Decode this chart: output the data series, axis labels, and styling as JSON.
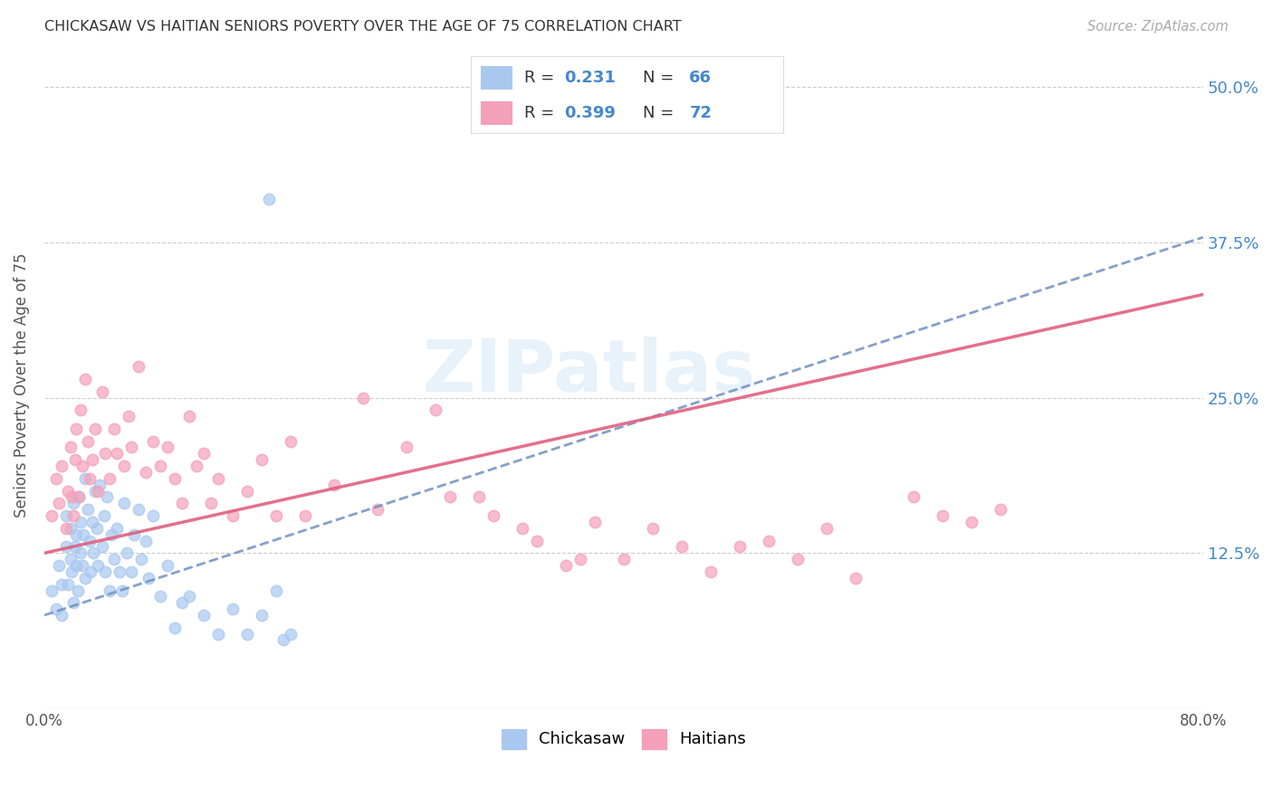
{
  "title": "CHICKASAW VS HAITIAN SENIORS POVERTY OVER THE AGE OF 75 CORRELATION CHART",
  "source": "Source: ZipAtlas.com",
  "ylabel": "Seniors Poverty Over the Age of 75",
  "chickasaw_R": 0.231,
  "chickasaw_N": 66,
  "haitian_R": 0.399,
  "haitian_N": 72,
  "chickasaw_dot_color": "#a8c8f0",
  "haitian_dot_color": "#f4a0b8",
  "chickasaw_line_color": "#7090c0",
  "haitian_line_color": "#e06080",
  "xlim": [
    0.0,
    0.8
  ],
  "ylim": [
    0.0,
    0.52
  ],
  "yticks": [
    0.0,
    0.125,
    0.25,
    0.375,
    0.5
  ],
  "ytick_labels": [
    "",
    "12.5%",
    "25.0%",
    "37.5%",
    "50.0%"
  ],
  "xticks": [
    0.0,
    0.1,
    0.2,
    0.3,
    0.4,
    0.5,
    0.6,
    0.7,
    0.8
  ],
  "xtick_labels_show": [
    "0.0%",
    "80.0%"
  ],
  "watermark_text": "ZIPatlas",
  "background_color": "#ffffff",
  "legend_label_1": "R =  0.231   N = 66",
  "legend_label_2": "R =  0.399   N = 72",
  "legend_label_chickasaw": "Chickasaw",
  "legend_label_haitian": "Haitians",
  "chickasaw_x": [
    0.005,
    0.008,
    0.01,
    0.012,
    0.012,
    0.015,
    0.015,
    0.016,
    0.018,
    0.018,
    0.019,
    0.02,
    0.02,
    0.021,
    0.022,
    0.022,
    0.023,
    0.024,
    0.025,
    0.025,
    0.026,
    0.027,
    0.028,
    0.028,
    0.03,
    0.031,
    0.032,
    0.033,
    0.034,
    0.035,
    0.036,
    0.037,
    0.038,
    0.04,
    0.041,
    0.042,
    0.043,
    0.045,
    0.046,
    0.048,
    0.05,
    0.052,
    0.054,
    0.055,
    0.057,
    0.06,
    0.062,
    0.065,
    0.067,
    0.07,
    0.072,
    0.075,
    0.08,
    0.085,
    0.09,
    0.095,
    0.1,
    0.11,
    0.12,
    0.13,
    0.14,
    0.15,
    0.155,
    0.16,
    0.165,
    0.17
  ],
  "chickasaw_y": [
    0.095,
    0.08,
    0.115,
    0.075,
    0.1,
    0.13,
    0.155,
    0.1,
    0.12,
    0.145,
    0.11,
    0.165,
    0.085,
    0.13,
    0.115,
    0.14,
    0.095,
    0.17,
    0.125,
    0.15,
    0.115,
    0.14,
    0.185,
    0.105,
    0.16,
    0.135,
    0.11,
    0.15,
    0.125,
    0.175,
    0.145,
    0.115,
    0.18,
    0.13,
    0.155,
    0.11,
    0.17,
    0.095,
    0.14,
    0.12,
    0.145,
    0.11,
    0.095,
    0.165,
    0.125,
    0.11,
    0.14,
    0.16,
    0.12,
    0.135,
    0.105,
    0.155,
    0.09,
    0.115,
    0.065,
    0.085,
    0.09,
    0.075,
    0.06,
    0.08,
    0.06,
    0.075,
    0.41,
    0.095,
    0.055,
    0.06
  ],
  "haitian_x": [
    0.005,
    0.008,
    0.01,
    0.012,
    0.015,
    0.016,
    0.018,
    0.019,
    0.02,
    0.021,
    0.022,
    0.024,
    0.025,
    0.026,
    0.028,
    0.03,
    0.031,
    0.033,
    0.035,
    0.037,
    0.04,
    0.042,
    0.045,
    0.048,
    0.05,
    0.055,
    0.058,
    0.06,
    0.065,
    0.07,
    0.075,
    0.08,
    0.085,
    0.09,
    0.095,
    0.1,
    0.105,
    0.11,
    0.115,
    0.12,
    0.13,
    0.14,
    0.15,
    0.16,
    0.17,
    0.18,
    0.2,
    0.22,
    0.23,
    0.25,
    0.27,
    0.28,
    0.3,
    0.31,
    0.33,
    0.34,
    0.36,
    0.37,
    0.38,
    0.4,
    0.42,
    0.44,
    0.46,
    0.48,
    0.5,
    0.52,
    0.54,
    0.56,
    0.6,
    0.62,
    0.64,
    0.66
  ],
  "haitian_y": [
    0.155,
    0.185,
    0.165,
    0.195,
    0.145,
    0.175,
    0.21,
    0.17,
    0.155,
    0.2,
    0.225,
    0.17,
    0.24,
    0.195,
    0.265,
    0.215,
    0.185,
    0.2,
    0.225,
    0.175,
    0.255,
    0.205,
    0.185,
    0.225,
    0.205,
    0.195,
    0.235,
    0.21,
    0.275,
    0.19,
    0.215,
    0.195,
    0.21,
    0.185,
    0.165,
    0.235,
    0.195,
    0.205,
    0.165,
    0.185,
    0.155,
    0.175,
    0.2,
    0.155,
    0.215,
    0.155,
    0.18,
    0.25,
    0.16,
    0.21,
    0.24,
    0.17,
    0.17,
    0.155,
    0.145,
    0.135,
    0.115,
    0.12,
    0.15,
    0.12,
    0.145,
    0.13,
    0.11,
    0.13,
    0.135,
    0.12,
    0.145,
    0.105,
    0.17,
    0.155,
    0.15,
    0.16
  ],
  "chickasaw_line_intercept": 0.075,
  "chickasaw_line_slope": 0.38,
  "haitian_line_intercept": 0.125,
  "haitian_line_slope": 0.26
}
